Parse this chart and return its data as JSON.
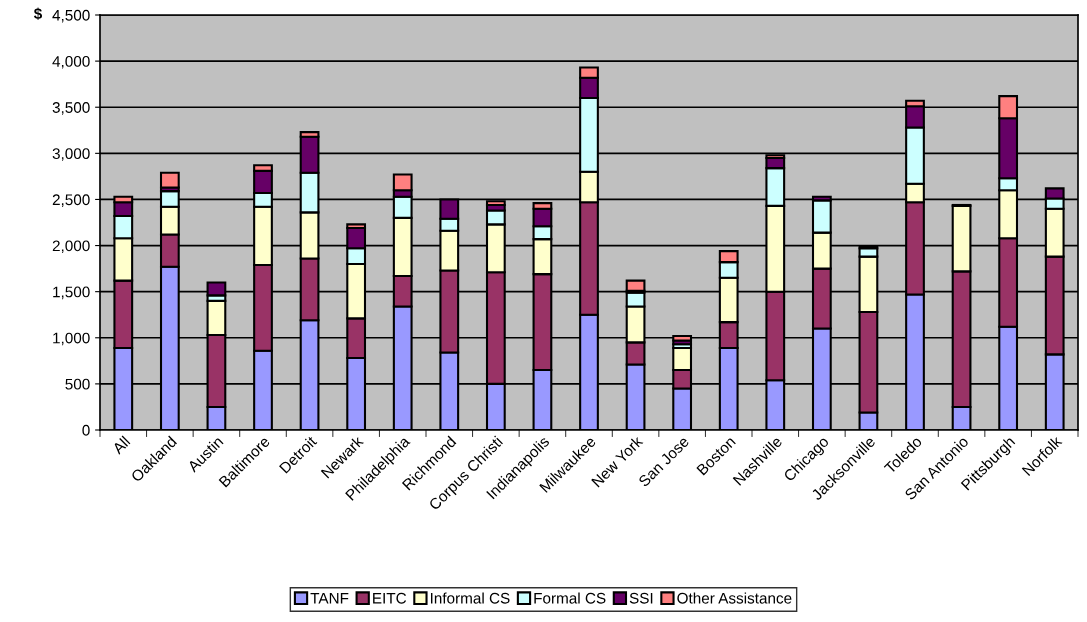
{
  "chart_data": {
    "type": "bar",
    "stacked": true,
    "ylabel": "$",
    "ylim": [
      0,
      4500
    ],
    "yticks": [
      {
        "value": 0,
        "label": "0"
      },
      {
        "value": 500,
        "label": "500"
      },
      {
        "value": 1000,
        "label": "1,000"
      },
      {
        "value": 1500,
        "label": "1,500"
      },
      {
        "value": 2000,
        "label": "2,000"
      },
      {
        "value": 2500,
        "label": "2,500"
      },
      {
        "value": 3000,
        "label": "3,000"
      },
      {
        "value": 3500,
        "label": "3,500"
      },
      {
        "value": 4000,
        "label": "4,000"
      },
      {
        "value": 4500,
        "label": "4,500"
      }
    ],
    "grid": "y",
    "legend": "bottom",
    "categories": [
      "All",
      "Oakland",
      "Austin",
      "Baltimore",
      "Detroit",
      "Newark",
      "Philadelphia",
      "Richmond",
      "Corpus Christi",
      "Indianapolis",
      "Milwaukee",
      "New York",
      "San Jose",
      "Boston",
      "Nashville",
      "Chicago",
      "Jacksonville",
      "Toledo",
      "San Antonio",
      "Pittsburgh",
      "Norfolk"
    ],
    "series": [
      {
        "name": "TANF",
        "color": "#9999ff",
        "values": [
          890,
          1770,
          250,
          860,
          1190,
          780,
          1340,
          840,
          500,
          650,
          1250,
          710,
          450,
          890,
          540,
          1100,
          190,
          1470,
          250,
          1120,
          820
        ]
      },
      {
        "name": "EITC",
        "color": "#993366",
        "values": [
          730,
          350,
          780,
          930,
          670,
          430,
          330,
          890,
          1210,
          1040,
          1220,
          240,
          200,
          280,
          960,
          650,
          1090,
          1000,
          1470,
          960,
          1060
        ]
      },
      {
        "name": "Informal CS",
        "color": "#ffffcc",
        "values": [
          460,
          300,
          370,
          630,
          500,
          590,
          630,
          430,
          520,
          380,
          330,
          390,
          240,
          480,
          930,
          390,
          600,
          200,
          710,
          520,
          520
        ]
      },
      {
        "name": "Formal CS",
        "color": "#ccffff",
        "values": [
          240,
          170,
          60,
          150,
          430,
          170,
          230,
          130,
          150,
          140,
          800,
          150,
          40,
          170,
          410,
          350,
          90,
          610,
          null,
          130,
          110
        ]
      },
      {
        "name": "SSI",
        "color": "#660066",
        "values": [
          150,
          40,
          140,
          240,
          390,
          220,
          70,
          210,
          60,
          190,
          220,
          20,
          40,
          null,
          110,
          40,
          20,
          230,
          10,
          650,
          110
        ]
      },
      {
        "name": "Other Assistance",
        "color": "#ff8080",
        "values": [
          60,
          160,
          null,
          60,
          50,
          40,
          170,
          null,
          40,
          60,
          110,
          110,
          50,
          120,
          30,
          null,
          null,
          60,
          null,
          240,
          null
        ]
      }
    ]
  }
}
